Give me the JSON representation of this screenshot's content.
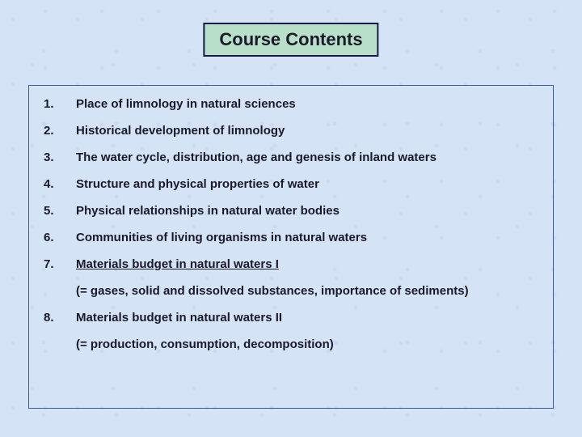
{
  "colors": {
    "background": "#d4e3f5",
    "title_bg": "#b8e0c8",
    "title_border": "#1a1a4a",
    "content_border": "#3a5a9a",
    "text": "#1a1a2a"
  },
  "typography": {
    "title_fontsize": 22,
    "item_fontsize": 15,
    "font_family": "Arial"
  },
  "title": "Course Contents",
  "items": [
    {
      "num": "1.",
      "text": "Place of limnology in natural sciences",
      "underlined": false
    },
    {
      "num": "2.",
      "text": "Historical development of limnology",
      "underlined": false
    },
    {
      "num": "3.",
      "text": "The water cycle, distribution, age and genesis of inland waters",
      "underlined": false
    },
    {
      "num": "4.",
      "text": "Structure and physical properties of water",
      "underlined": false
    },
    {
      "num": "5.",
      "text": "Physical relationships in natural water bodies",
      "underlined": false
    },
    {
      "num": "6.",
      "text": "Communities of living organisms in natural waters",
      "underlined": false
    },
    {
      "num": "7.",
      "text": "Materials budget in natural waters I",
      "underlined": true,
      "sub": "(= gases, solid and dissolved substances, importance of sediments)"
    },
    {
      "num": "8.",
      "text": "Materials budget in natural waters II",
      "underlined": false,
      "sub": "(= production, consumption, decomposition)"
    }
  ]
}
